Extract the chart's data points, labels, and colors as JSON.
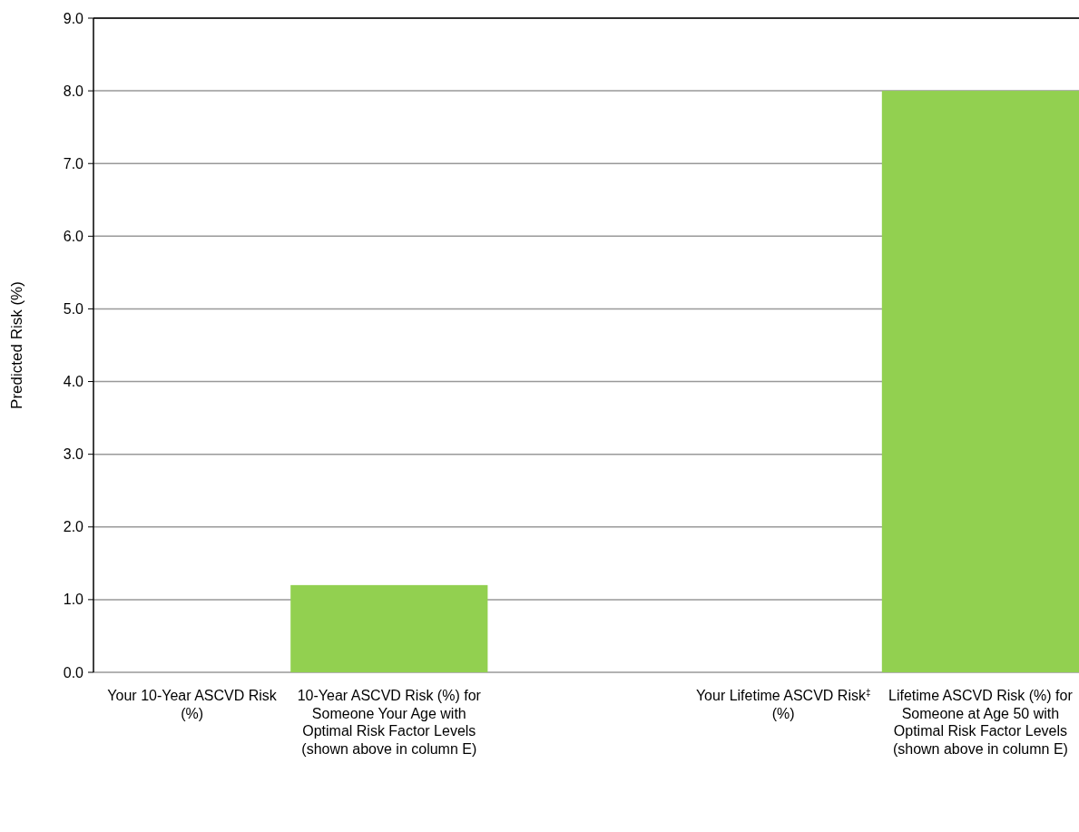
{
  "chart_data": {
    "type": "bar",
    "ylabel": "Predicted Risk (%)",
    "categories": [
      "Your 10-Year ASCVD Risk (%)",
      "10-Year ASCVD Risk (%) for Someone Your Age with Optimal Risk Factor Levels (shown above in column E)",
      null,
      "Your Lifetime ASCVD Risk$^{‡}$ (%)",
      "Lifetime ASCVD Risk (%) for Someone at Age 50 with Optimal Risk Factor Levels (shown above in column E)"
    ],
    "values": [
      null,
      1.2,
      null,
      null,
      8.0
    ],
    "color": "#92d050",
    "ylim": [
      0,
      9
    ],
    "yticks": [
      {
        "value": 0,
        "label": "0.0"
      },
      {
        "value": 1,
        "label": "1.0"
      },
      {
        "value": 2,
        "label": "2.0"
      },
      {
        "value": 3,
        "label": "3.0"
      },
      {
        "value": 4,
        "label": "4.0"
      },
      {
        "value": 5,
        "label": "5.0"
      },
      {
        "value": 6,
        "label": "6.0"
      },
      {
        "value": 7,
        "label": "7.0"
      },
      {
        "value": 8,
        "label": "8.0"
      },
      {
        "value": 9,
        "label": "9.0"
      }
    ],
    "grid": "y"
  }
}
